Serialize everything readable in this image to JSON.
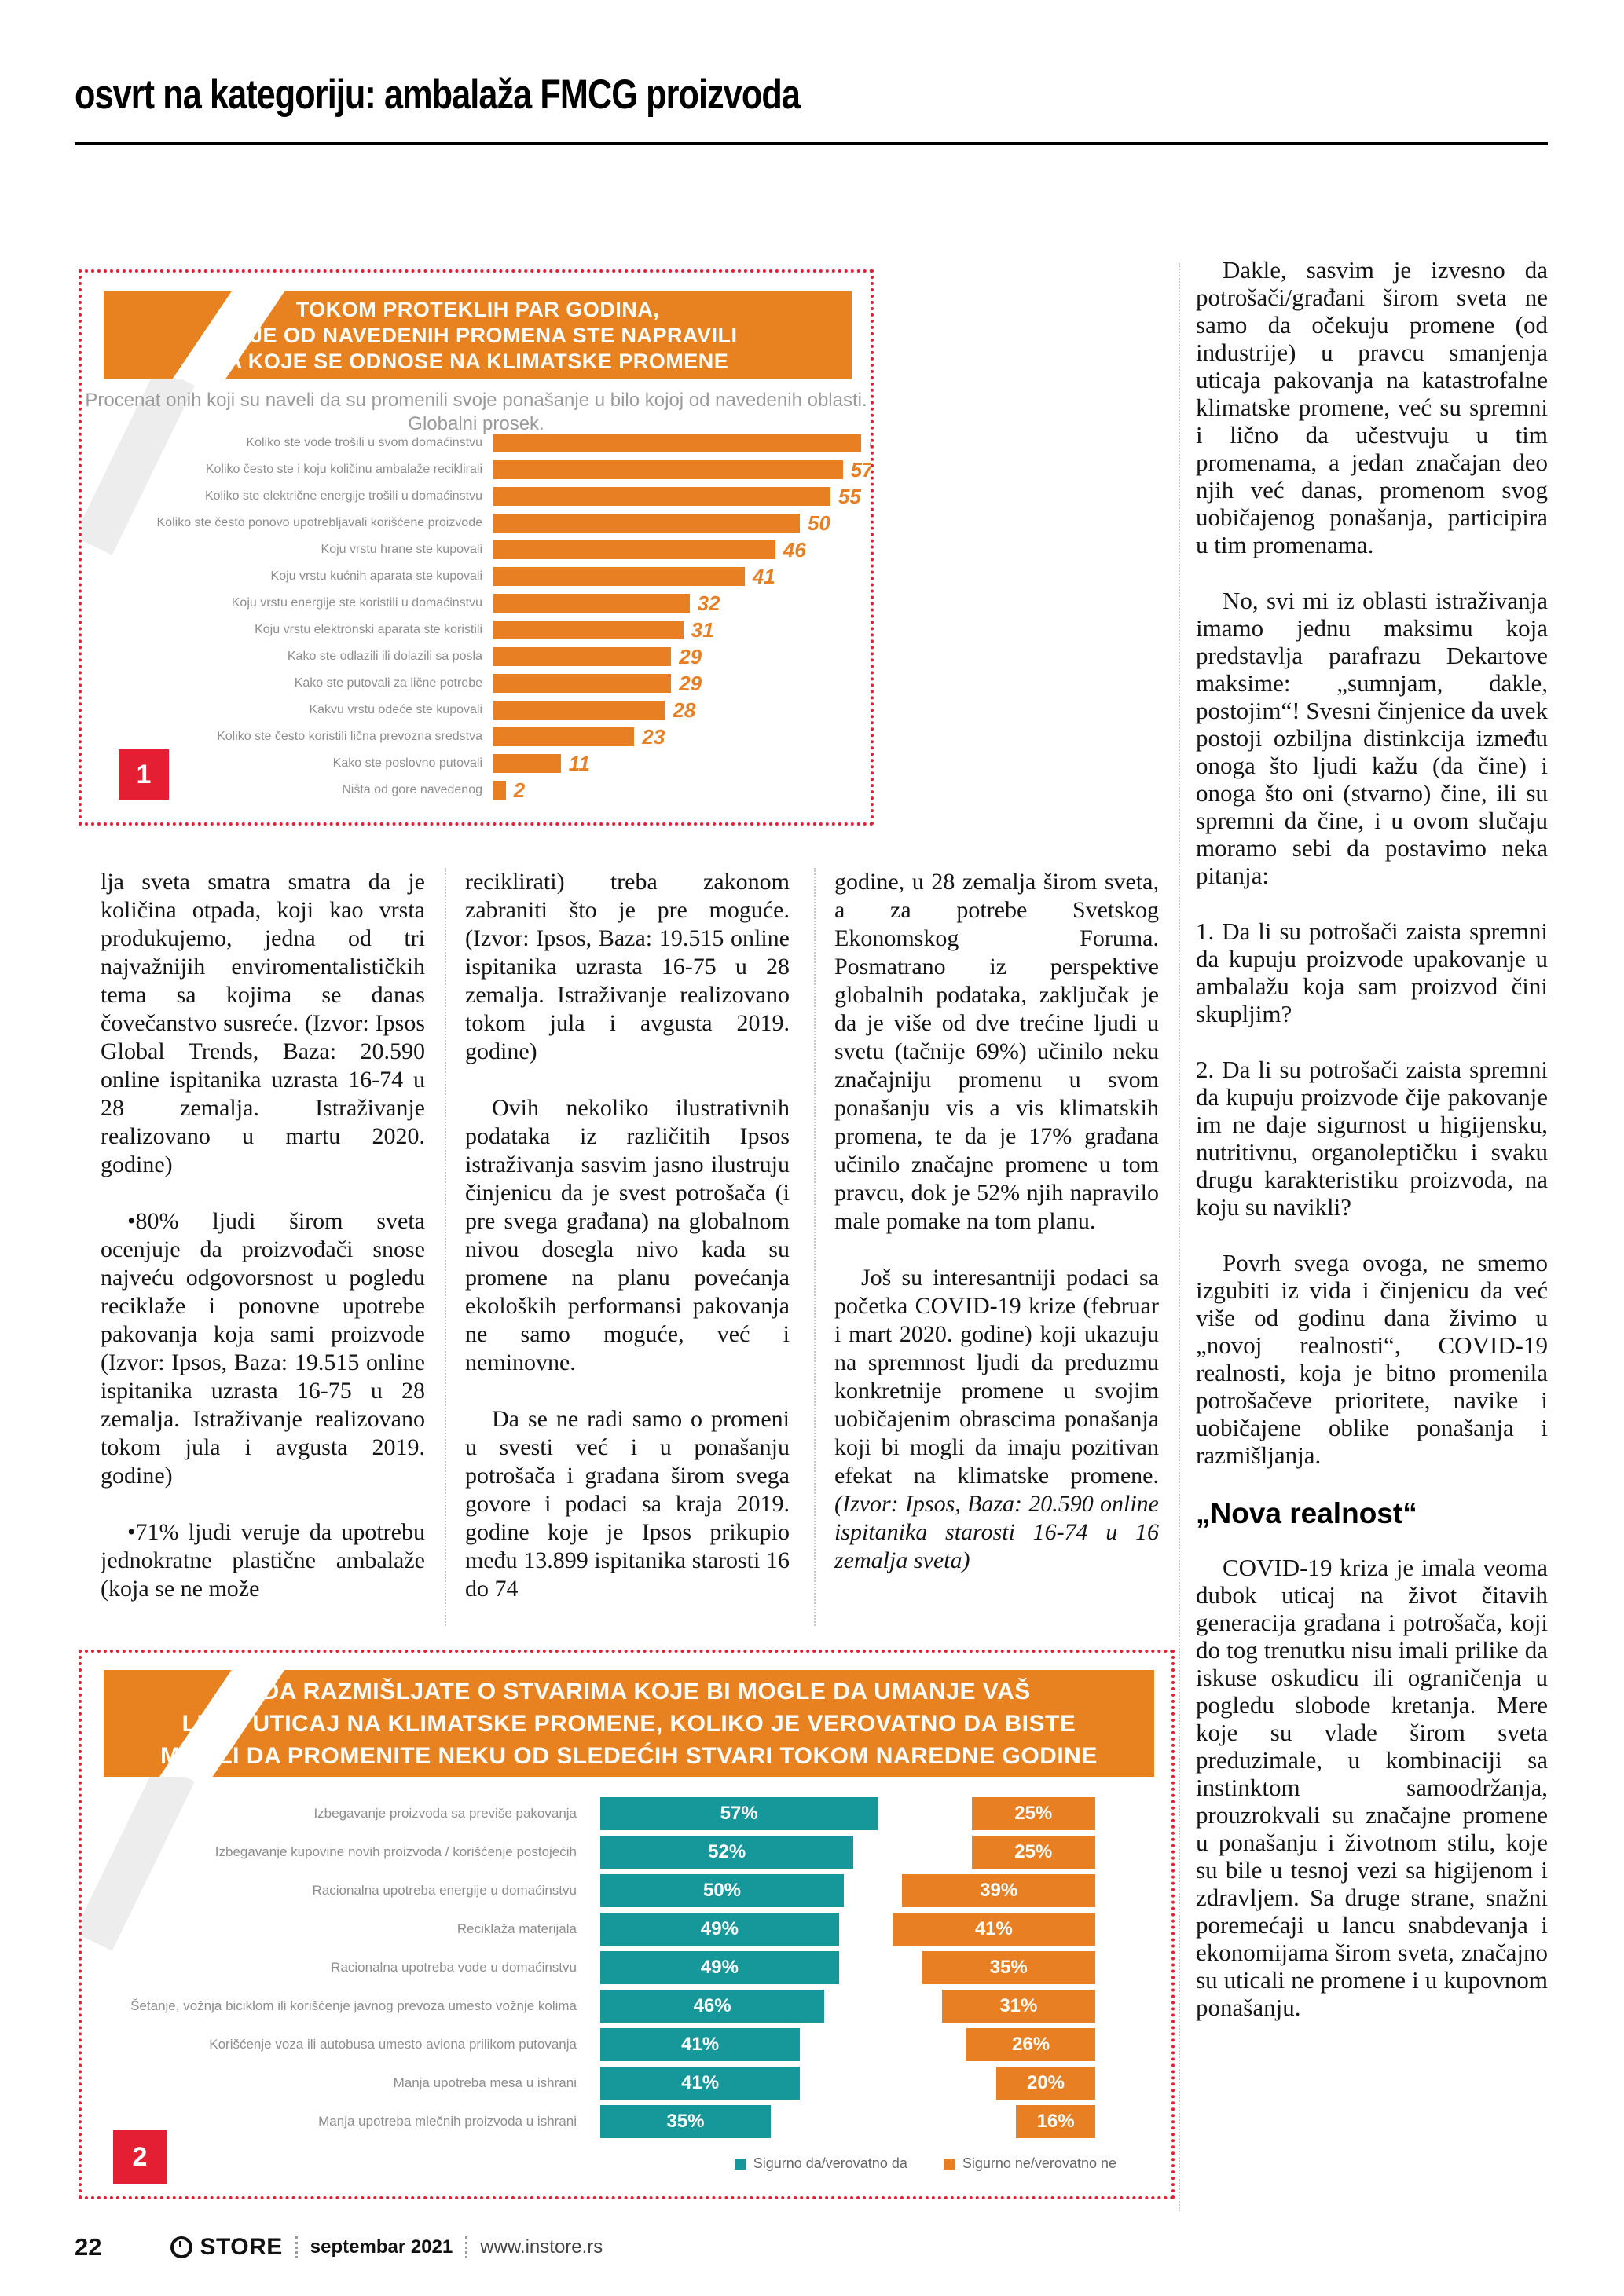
{
  "page": {
    "header_title": "osvrt na kategoriju: ambalaža FMCG proizvoda",
    "footer": {
      "page_number": "22",
      "brand": "STORE",
      "date": "septembar 2021",
      "site": "www.instore.rs"
    }
  },
  "chart_data": [
    {
      "type": "bar",
      "orientation": "horizontal",
      "figure_number": "1",
      "title": "TOKOM PROTEKLIH PAR GODINA, KOJE OD NAVEDENIH PROMENA STE NAPRAVILI A KOJE SE ODNOSE NA KLIMATSKE PROMENE",
      "title_lines": [
        "TOKOM PROTEKLIH PAR GODINA,",
        "KOJE OD NAVEDENIH PROMENA STE NAPRAVILI",
        "A KOJE SE ODNOSE NA KLIMATSKE PROMENE"
      ],
      "subtitle_line1": "Procenat onih koji su naveli da su promenili svoje ponašanje u bilo kojoj od navedenih oblasti.",
      "subtitle_line2": "Globalni prosek.",
      "categories": [
        "Koliko ste vode trošili u svom domaćinstvu",
        "Koliko često ste i koju količinu ambalaže reciklirali",
        "Koliko ste električne energije trošili u domaćinstvu",
        "Koliko ste često ponovo upotrebljavali korišćene proizvode",
        "Koju vrstu hrane ste kupovali",
        "Koju vrstu kućnih aparata ste kupovali",
        "Koju vrstu energije ste koristili u domaćinstvu",
        "Koju vrstu elektronski aparata ste koristili",
        "Kako ste odlazili ili dolazili sa posla",
        "Kako ste putovali za lične potrebe",
        "Kakvu vrstu odeće ste kupovali",
        "Koliko ste često koristili lična prevozna sredstva",
        "Kako ste poslovno putovali",
        "Ništa od gore navedenog"
      ],
      "values": [
        60,
        57,
        55,
        50,
        46,
        41,
        32,
        31,
        29,
        29,
        28,
        23,
        11,
        2
      ],
      "xlim": [
        0,
        62
      ],
      "bar_color": "#e87f22",
      "grid": false,
      "legend": "none"
    },
    {
      "type": "bar",
      "orientation": "horizontal",
      "figure_number": "2",
      "title": "KADA RAZMIŠLJATE O STVARIMA KOJE BI MOGLE DA UMANJE VAŠ LIČNI UTICAJ NA KLIMATSKE PROMENE, KOLIKO JE VEROVATNO DA BISTE MOGLI DA PROMENITE NEKU OD SLEDEĆIH STVARI TOKOM NAREDNE GODINE",
      "title_lines": [
        "KADA RAZMIŠLJATE O STVARIMA KOJE BI MOGLE DA UMANJE VAŠ",
        "LIČNI UTICAJ NA KLIMATSKE PROMENE, KOLIKO JE VEROVATNO DA BISTE",
        "MOGLI DA PROMENITE NEKU OD SLEDEĆIH STVARI TOKOM NAREDNE GODINE"
      ],
      "categories": [
        "Izbegavanje proizvoda sa previše pakovanja",
        "Izbegavanje kupovine novih proizvoda / korišćenje postojećih",
        "Racionalna upotreba energije u domaćinstvu",
        "Reciklaža materijala",
        "Racionalna upotreba vode u domaćinstvu",
        "Šetanje, vožnja biciklom ili korišćenje javnog prevoza umesto vožnje kolima",
        "Korišćenje voza ili autobusa umesto aviona prilikom putovanja",
        "Manja upotreba mesa u ishrani",
        "Manja upotreba mlečnih proizvoda u ishrani"
      ],
      "series": [
        {
          "name": "Sigurno da/verovatno da",
          "color": "#16989b",
          "values": [
            57,
            52,
            50,
            49,
            49,
            46,
            41,
            41,
            35
          ]
        },
        {
          "name": "Sigurno ne/verovatno ne",
          "color": "#e87f22",
          "values": [
            25,
            25,
            39,
            41,
            35,
            31,
            26,
            20,
            16
          ]
        }
      ],
      "value_suffix": "%",
      "grid": false,
      "legend_position": "bottom-right"
    }
  ],
  "columns": {
    "c1p1": "lja sveta smatra smatra da je količina otpada, koji kao vrsta produkujemo, jedna od tri najvažnijih enviromentalističkih tema sa kojima se danas čovečanstvo susreće. (Izvor: Ipsos Global Trends, Baza: 20.590 online ispitanika uzrasta 16-74 u 28 zemalja. Istraživanje realizovano u martu 2020. godine)",
    "c1p2": "•80% ljudi širom sveta ocenjuje da proizvođači snose najveću odgovorsnost u pogledu reciklaže i ponovne upotrebe pakovanja koja sami proizvode (Izvor: Ipsos, Baza: 19.515 online ispitanika uzrasta 16-75 u 28 zemalja. Istraživanje realizovano tokom jula i avgusta 2019. godine)",
    "c1p3": "•71% ljudi veruje da upotrebu jednokratne plastične ambalaže (koja se ne može",
    "c2p1": "reciklirati) treba zakonom zabraniti što je pre moguće. (Izvor: Ipsos, Baza: 19.515 online ispitanika uzrasta 16-75 u 28 zemalja. Istraživanje realizovano tokom jula i avgusta 2019. godine)",
    "c2p2": "Ovih nekoliko ilustrativnih podataka iz različitih Ipsos istraživanja sasvim jasno ilustruju činjenicu da je svest potrošača (i pre svega građana) na globalnom nivou dosegla nivo kada su promene na planu povećanja ekoloških performansi pakovanja ne samo moguće, već i neminovne.",
    "c2p3": "Da se ne radi samo o promeni u svesti već i u ponašanju potrošača i građana širom svega govore i podaci sa kraja 2019. godine koje je Ipsos prikupio među 13.899 ispitanika starosti 16 do 74",
    "c3p1": "godine, u 28 zemalja širom sveta, a za potrebe Svetskog Ekonomskog Foruma. Posmatrano iz perspektive globalnih podataka, zaključak je da je više od dve trećine ljudi u svetu (tačnije 69%) učinilo neku značajniju promenu u svom ponašanju vis a vis klimatskih promena, te da je 17% građana učinilo značajne promene u tom pravcu, dok je 52% njih napravilo male pomake na tom planu.",
    "c3p2a": "Još su interesantniji podaci sa početka COVID-19 krize (februar i mart 2020. godine) koji ukazuju na spremnost ljudi da preduzmu konkretnije promene u svojim uobičajenim obrascima ponašanja koji bi mogli da imaju pozitivan efekat na klimatske promene. ",
    "c3p2b": "(Izvor: Ipsos, Baza: 20.590 online ispitanika starosti 16-74 u 16 zemalja sveta)"
  },
  "sidebar": {
    "r1": "Dakle, sasvim je izvesno da potrošači/građani širom sveta ne samo da očekuju promene (od industrije) u pravcu smanjenja uticaja pakovanja na katastrofalne klimatske promene, već su spremni i lično da učestvuju u tim promenama, a jedan značajan deo njih već danas, promenom svog uobičajenog ponašanja, participira u tim promenama.",
    "r2": "No, svi mi iz oblasti istraživanja imamo jednu maksimu koja predstavlja parafrazu Dekartove maksime: „sumnjam, dakle, postojim“! Svesni činjenice da uvek postoji ozbiljna distinkcija između onoga što ljudi kažu (da čine) i onoga što oni (stvarno) čine, ili su spremni da čine, i u ovom slučaju moramo sebi da postavimo neka pitanja:",
    "r3": "1. Da li su potrošači zaista spremni da kupuju proizvode upakovanje u ambalažu koja sam proizvod čini skupljim?",
    "r4": "2. Da li su potrošači zaista spremni da kupuju proizvode čije pakovanje im ne daje sigurnost u higijensku, nutritivnu, organoleptičku i svaku drugu karakteristiku proizvoda, na koju su navikli?",
    "r5": "Povrh svega ovoga, ne smemo izgubiti iz vida i činjenicu da već više od godinu dana živimo u „novoj realnosti“, COVID-19 realnosti, koja je bitno promenila potrošačeve prioritete, navike i uobičajene oblike ponašanja i razmišljanja.",
    "heading": "„Nova realnost“",
    "r6": "COVID-19 kriza je imala veoma dubok uticaj na život čitavih generacija građana i potrošača, koji do tog trenutku nisu imali prilike da iskuse oskudicu ili ograničenja u pogledu slobode kretanja. Mere koje su vlade širom sveta preduzimale, u kombinaciji sa instinktom samoodržanja, prouzrokvali su značajne promene u ponašanju i životnom stilu, koje su bile u tesnoj vezi sa higijenom i zdravljem. Sa druge strane, snažni poremećaji u lancu snabdevanja i ekonomijama širom sveta, značajno su uticali ne promene i u kupovnom ponašanju."
  }
}
